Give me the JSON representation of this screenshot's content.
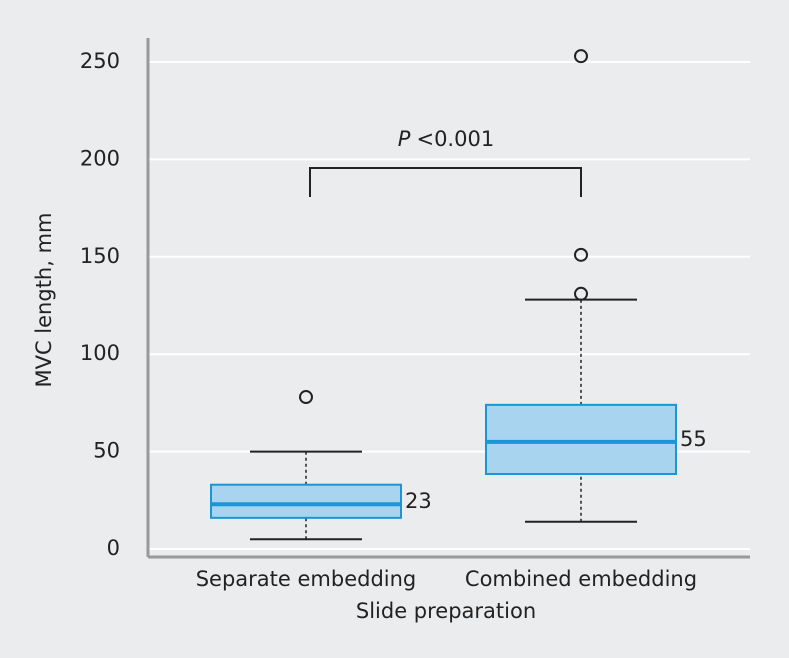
{
  "chart_data": {
    "type": "box",
    "y_label": "MVC length, mm",
    "x_label": "Slide preparation",
    "annotation": {
      "italic": "P",
      "text": "<0.001"
    },
    "categories": [
      "Separate embedding",
      "Combined embedding"
    ],
    "box_fill": "#a9d4ef",
    "box_stroke": "#1a95d6",
    "boxes": [
      {
        "min": 5,
        "q1": 16,
        "median": 23,
        "q3": 33,
        "max": 50,
        "outliers": [
          78
        ]
      },
      {
        "min": 14,
        "q1": 38.5,
        "median": 55,
        "q3": 74,
        "max": 128,
        "outliers": [
          131,
          151,
          253
        ]
      }
    ],
    "ylim": [
      0,
      250
    ],
    "yticks": [
      0,
      50,
      100,
      150,
      200,
      250
    ],
    "grid": true
  }
}
